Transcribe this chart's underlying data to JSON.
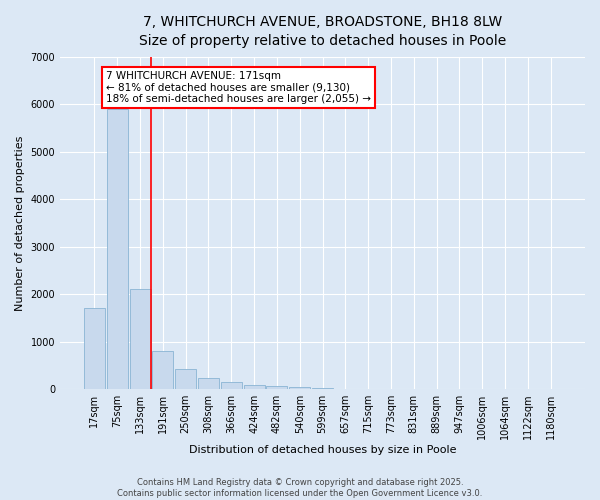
{
  "title_line1": "7, WHITCHURCH AVENUE, BROADSTONE, BH18 8LW",
  "title_line2": "Size of property relative to detached houses in Poole",
  "xlabel": "Distribution of detached houses by size in Poole",
  "ylabel": "Number of detached properties",
  "bar_color": "#c8d9ed",
  "bar_edge_color": "#8ab4d4",
  "background_color": "#dce8f5",
  "grid_color": "#ffffff",
  "categories": [
    "17sqm",
    "75sqm",
    "133sqm",
    "191sqm",
    "250sqm",
    "308sqm",
    "366sqm",
    "424sqm",
    "482sqm",
    "540sqm",
    "599sqm",
    "657sqm",
    "715sqm",
    "773sqm",
    "831sqm",
    "889sqm",
    "947sqm",
    "1006sqm",
    "1064sqm",
    "1122sqm",
    "1180sqm"
  ],
  "values": [
    1700,
    5900,
    2100,
    800,
    420,
    230,
    150,
    90,
    55,
    45,
    25,
    12,
    6,
    0,
    0,
    0,
    0,
    0,
    0,
    0,
    0
  ],
  "ylim": [
    0,
    7000
  ],
  "yticks": [
    0,
    1000,
    2000,
    3000,
    4000,
    5000,
    6000,
    7000
  ],
  "red_line_x": 2.5,
  "annotation_line1": "7 WHITCHURCH AVENUE: 171sqm",
  "annotation_line2": "← 81% of detached houses are smaller (9,130)",
  "annotation_line3": "18% of semi-detached houses are larger (2,055) →",
  "footer_line1": "Contains HM Land Registry data © Crown copyright and database right 2025.",
  "footer_line2": "Contains public sector information licensed under the Open Government Licence v3.0.",
  "title_fontsize": 10,
  "subtitle_fontsize": 9,
  "axis_label_fontsize": 8,
  "tick_fontsize": 7,
  "annotation_fontsize": 7.5,
  "footer_fontsize": 6
}
